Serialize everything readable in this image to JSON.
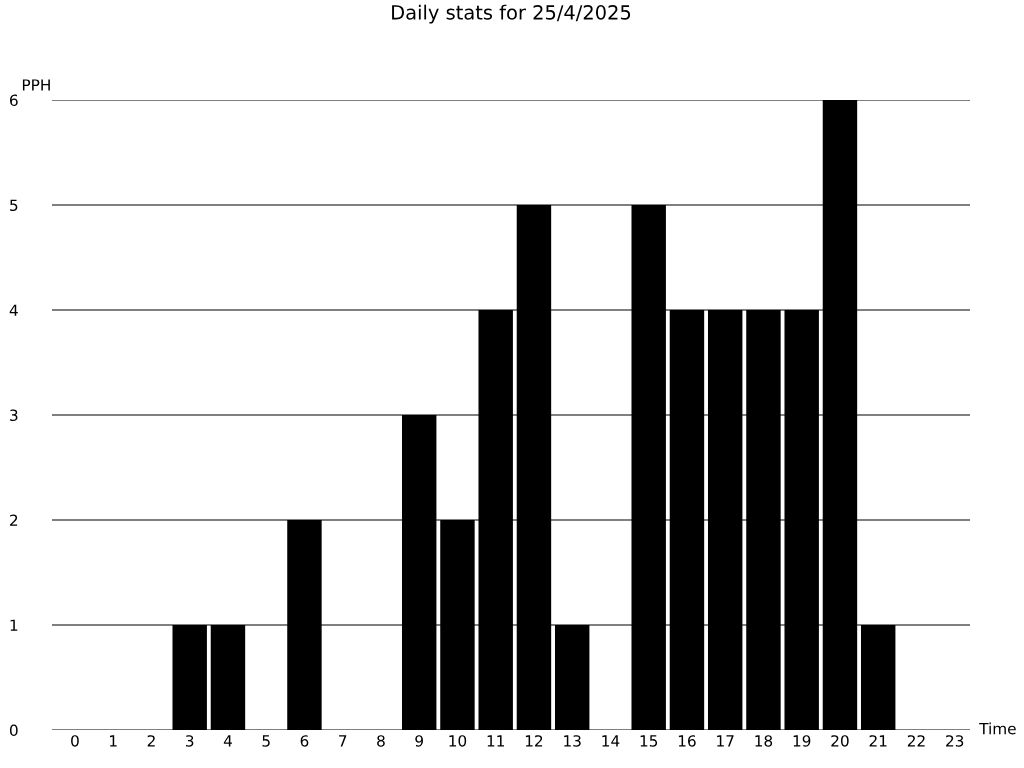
{
  "chart_data": {
    "type": "bar",
    "title": "Daily stats for 25/4/2025",
    "xlabel": "Time",
    "ylabel": "PPH",
    "categories": [
      "0",
      "1",
      "2",
      "3",
      "4",
      "5",
      "6",
      "7",
      "8",
      "9",
      "10",
      "11",
      "12",
      "13",
      "14",
      "15",
      "16",
      "17",
      "18",
      "19",
      "20",
      "21",
      "22",
      "23"
    ],
    "values": [
      0,
      0,
      0,
      1,
      1,
      0,
      2,
      0,
      0,
      3,
      2,
      4,
      5,
      1,
      0,
      5,
      4,
      4,
      4,
      4,
      6,
      1,
      0,
      0
    ],
    "color": "#000000",
    "ylim": [
      0,
      6
    ],
    "yticks": [
      0,
      1,
      2,
      3,
      4,
      5,
      6
    ],
    "grid": "y",
    "legend": false
  }
}
